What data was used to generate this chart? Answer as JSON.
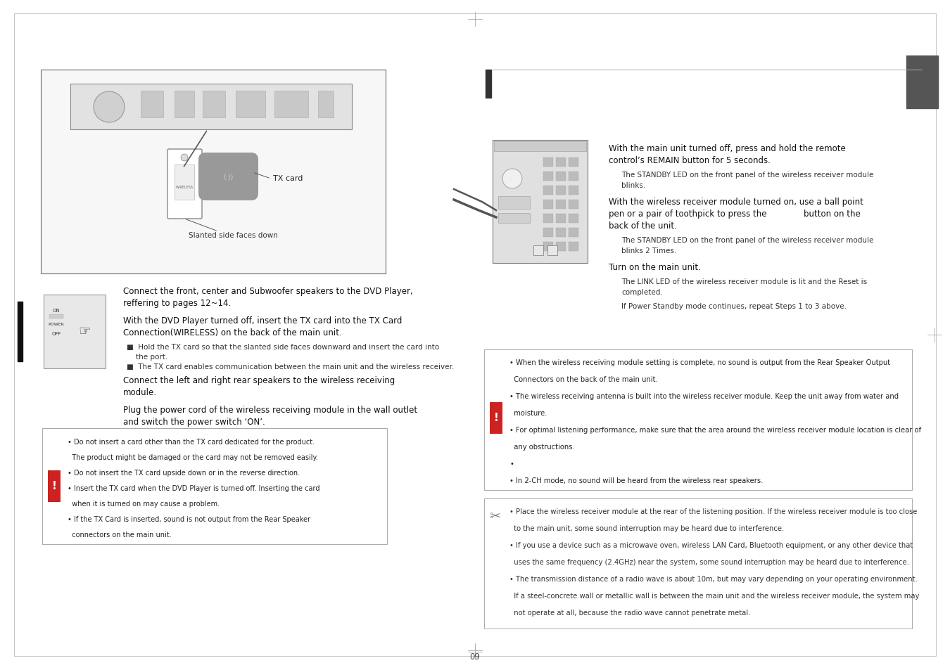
{
  "page_bg": "#ffffff",
  "figsize": [
    13.5,
    9.54
  ],
  "dpi": 100,
  "left": {
    "diagram_label1": "TX card",
    "diagram_label2": "Slanted side faces down",
    "step1": "Connect the front, center and Subwoofer speakers to the DVD Player,",
    "step1b": "reffering to pages 12~14.",
    "step2": "With the DVD Player turned off, insert the TX card into the TX Card",
    "step2b": "Connection(WIRELESS) on the back of the main unit.",
    "bullet1a": "Hold the TX card so that the slanted side faces downward and insert the card into",
    "bullet1b": "the port.",
    "bullet2": "The TX card enables communication between the main unit and the wireless receiver.",
    "step3": "Connect the left and right rear speakers to the wireless receiving",
    "step3b": "module.",
    "step4": "Plug the power cord of the wireless receiving module in the wall outlet",
    "step4b": "and switch the power switch ‘ON’.",
    "warn1a": "Do not insert a card other than the TX card dedicated for the product.",
    "warn1b": "The product might be damaged or the card may not be removed easily.",
    "warn2": "Do not insert the TX card upside down or in the reverse direction.",
    "warn3a": "Insert the TX card when the DVD Player is turned off. Inserting the card",
    "warn3b": "when it is turned on may cause a problem.",
    "warn4a": "If the TX Card is inserted, sound is not output from the Rear Speaker",
    "warn4b": "connectors on the main unit."
  },
  "right": {
    "r_step1a": "With the main unit turned off, press and hold the remote",
    "r_step1b": "control’s REMAIN button for 5 seconds.",
    "r_sub1a": "The STANDBY LED on the front panel of the wireless receiver module",
    "r_sub1b": "blinks.",
    "r_step2a": "With the wireless receiver module turned on, use a ball point",
    "r_step2b": "pen or a pair of toothpick to press the",
    "r_step2c": "button on the",
    "r_step2d": "back of the unit.",
    "r_sub2a": "The STANDBY LED on the front panel of the wireless receiver module",
    "r_sub2b": "blinks 2 Times.",
    "r_step3": "Turn on the main unit.",
    "r_sub3a": "The LINK LED of the wireless receiver module is lit and the Reset is",
    "r_sub3b": "completed.",
    "r_sub3c": "If Power Standby mode continues, repeat Steps 1 to 3 above.",
    "c1a": "When the wireless receiving module setting is complete, no sound is output from the Rear Speaker Output",
    "c1b": "Connectors on the back of the main unit.",
    "c2a": "The wireless receiving antenna is built into the wireless receiver module. Keep the unit away from water and",
    "c2b": "moisture.",
    "c3a": "For optimal listening performance, make sure that the area around the wireless receiver module location is clear of",
    "c3b": "any obstructions.",
    "c4": "•",
    "c5": "In 2-CH mode, no sound will be heard from the wireless rear speakers.",
    "n1a": "Place the wireless receiver module at the rear of the listening position. If the wireless receiver module is too close",
    "n1b": "to the main unit, some sound interruption may be heard due to interference.",
    "n2a": "If you use a device such as a microwave oven, wireless LAN Card, Bluetooth equipment, or any other device that",
    "n2b": "uses the same frequency (2.4GHz) near the system, some sound interruption may be heard due to interference.",
    "n3a": "The transmission distance of a radio wave is about 10m, but may vary depending on your operating environment.",
    "n3b": "If a steel-concrete wall or metallic wall is between the main unit and the wireless receiver module, the system may",
    "n3c": "not operate at all, because the radio wave cannot penetrate metal."
  }
}
